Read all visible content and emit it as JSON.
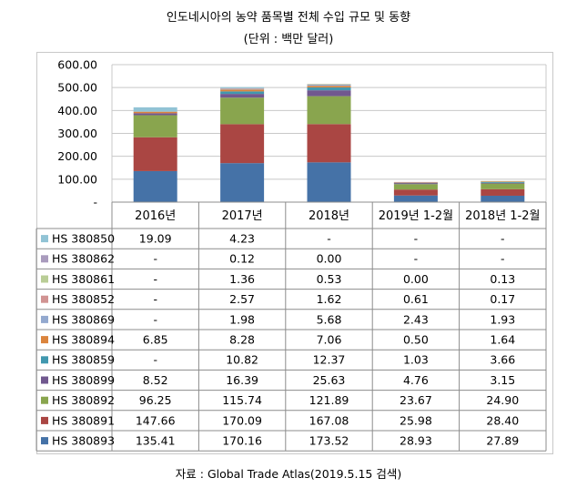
{
  "title": "인도네시아의 농약 품목별 전체 수입 규모 및 동향",
  "subtitle": "(단위 : 백만 달러)",
  "source": "자료 : Global Trade Atlas(2019.5.15 검색)",
  "chart_data": {
    "type": "bar",
    "stacked": true,
    "categories": [
      "2016년",
      "2017년",
      "2018년",
      "2019년 1-2월",
      "2018년 1-2월"
    ],
    "ylim": [
      0,
      600
    ],
    "yticks": [
      "-",
      "100.00",
      "200.00",
      "300.00",
      "400.00",
      "500.00",
      "600.00"
    ],
    "yticks_values": [
      0,
      100,
      200,
      300,
      400,
      500,
      600
    ],
    "grid": true,
    "legend": "table-left",
    "series": [
      {
        "name": "HS 380893",
        "color": "#4572A7",
        "values": [
          135.41,
          170.16,
          173.52,
          28.93,
          27.89
        ],
        "labels": [
          "135.41",
          "170.16",
          "173.52",
          "28.93",
          "27.89"
        ]
      },
      {
        "name": "HS 380891",
        "color": "#AA4643",
        "values": [
          147.66,
          170.09,
          167.08,
          25.98,
          28.4
        ],
        "labels": [
          "147.66",
          "170.09",
          "167.08",
          "25.98",
          "28.40"
        ]
      },
      {
        "name": "HS 380892",
        "color": "#89A54E",
        "values": [
          96.25,
          115.74,
          121.89,
          23.67,
          24.9
        ],
        "labels": [
          "96.25",
          "115.74",
          "121.89",
          "23.67",
          "24.90"
        ]
      },
      {
        "name": "HS 380899",
        "color": "#71588F",
        "values": [
          8.52,
          16.39,
          25.63,
          4.76,
          3.15
        ],
        "labels": [
          "8.52",
          "16.39",
          "25.63",
          "4.76",
          "3.15"
        ]
      },
      {
        "name": "HS 380859",
        "color": "#4198AF",
        "values": [
          0,
          10.82,
          12.37,
          1.03,
          3.66
        ],
        "labels": [
          "-",
          "10.82",
          "12.37",
          "1.03",
          "3.66"
        ]
      },
      {
        "name": "HS 380894",
        "color": "#DB843D",
        "values": [
          6.85,
          8.28,
          7.06,
          0.5,
          1.64
        ],
        "labels": [
          "6.85",
          "8.28",
          "7.06",
          "0.50",
          "1.64"
        ]
      },
      {
        "name": "HS 380869",
        "color": "#93A9CF",
        "values": [
          0,
          1.98,
          5.68,
          2.43,
          1.93
        ],
        "labels": [
          "-",
          "1.98",
          "5.68",
          "2.43",
          "1.93"
        ]
      },
      {
        "name": "HS 380852",
        "color": "#D19392",
        "values": [
          0,
          2.57,
          1.62,
          0.61,
          0.17
        ],
        "labels": [
          "-",
          "2.57",
          "1.62",
          "0.61",
          "0.17"
        ]
      },
      {
        "name": "HS 380861",
        "color": "#B9CD96",
        "values": [
          0,
          1.36,
          0.53,
          0.0,
          0.13
        ],
        "labels": [
          "-",
          "1.36",
          "0.53",
          "0.00",
          "0.13"
        ]
      },
      {
        "name": "HS 380862",
        "color": "#A99BBD",
        "values": [
          0,
          0.12,
          0.0,
          0,
          0
        ],
        "labels": [
          "-",
          "0.12",
          "0.00",
          "-",
          "-"
        ]
      },
      {
        "name": "HS 380850",
        "color": "#91C3D5",
        "values": [
          19.09,
          4.23,
          0,
          0,
          0
        ],
        "labels": [
          "19.09",
          "4.23",
          "-",
          "-",
          "-"
        ]
      }
    ]
  }
}
